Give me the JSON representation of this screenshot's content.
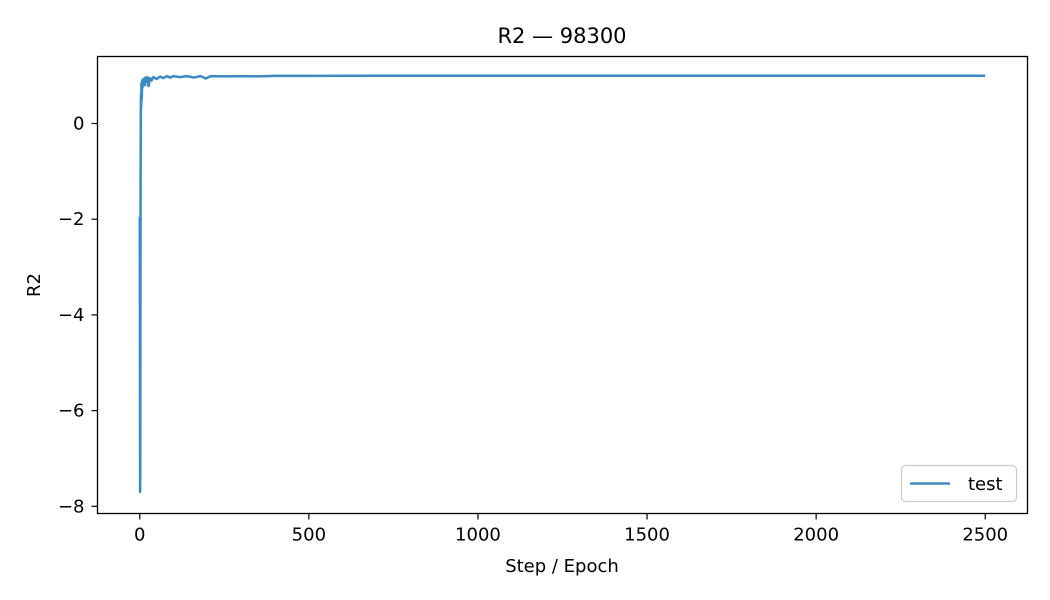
{
  "chart_data": {
    "type": "line",
    "title": "R2 — 98300",
    "xlabel": "Step / Epoch",
    "ylabel": "R2",
    "xlim": [
      -125,
      2625
    ],
    "ylim": [
      -8.15,
      1.4
    ],
    "xticks": [
      0,
      500,
      1000,
      1500,
      2000,
      2500
    ],
    "yticks": [
      -8,
      -6,
      -4,
      -2,
      0
    ],
    "ytick_labels": [
      "−8",
      "−6",
      "−4",
      "−2",
      "0"
    ],
    "grid": false,
    "legend": {
      "position": "lower-right",
      "entries": [
        "test"
      ]
    },
    "series": [
      {
        "name": "test",
        "color": "#3b8bc2",
        "points": [
          [
            0,
            -1.95
          ],
          [
            0.5,
            -4.5
          ],
          [
            1,
            -7.7
          ],
          [
            1.5,
            -7.2
          ],
          [
            2,
            -3.5
          ],
          [
            2.5,
            -1.0
          ],
          [
            3,
            0.2
          ],
          [
            3.5,
            0.6
          ],
          [
            4,
            0.3
          ],
          [
            5,
            0.85
          ],
          [
            6,
            0.5
          ],
          [
            7,
            0.9
          ],
          [
            8,
            0.75
          ],
          [
            10,
            0.92
          ],
          [
            12,
            0.85
          ],
          [
            14,
            0.95
          ],
          [
            16,
            0.8
          ],
          [
            18,
            0.96
          ],
          [
            20,
            0.88
          ],
          [
            23,
            0.97
          ],
          [
            26,
            0.78
          ],
          [
            30,
            0.95
          ],
          [
            35,
            0.9
          ],
          [
            40,
            0.97
          ],
          [
            50,
            0.93
          ],
          [
            60,
            0.98
          ],
          [
            70,
            0.95
          ],
          [
            80,
            0.99
          ],
          [
            90,
            0.96
          ],
          [
            100,
            0.99
          ],
          [
            120,
            0.97
          ],
          [
            140,
            0.99
          ],
          [
            160,
            0.96
          ],
          [
            180,
            0.99
          ],
          [
            195,
            0.94
          ],
          [
            210,
            0.99
          ],
          [
            250,
            0.985
          ],
          [
            300,
            0.99
          ],
          [
            350,
            0.985
          ],
          [
            400,
            0.995
          ],
          [
            500,
            0.995
          ],
          [
            700,
            0.997
          ],
          [
            1000,
            0.998
          ],
          [
            1500,
            0.998
          ],
          [
            2000,
            0.999
          ],
          [
            2500,
            0.999
          ]
        ]
      }
    ]
  }
}
